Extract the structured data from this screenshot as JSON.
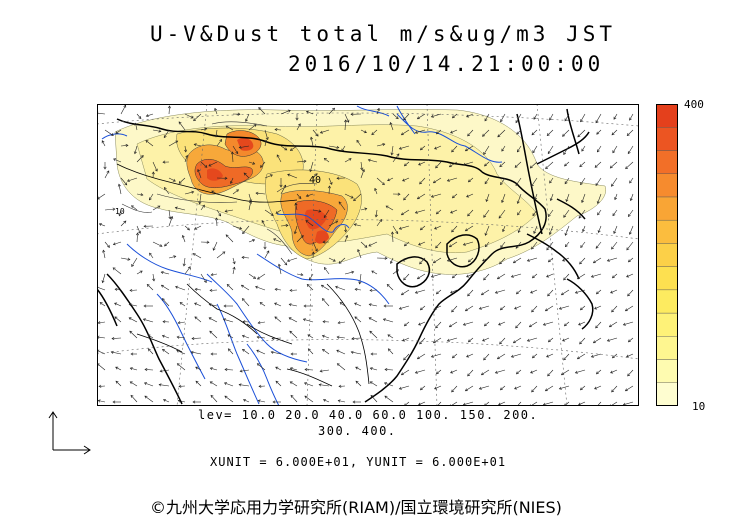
{
  "title": {
    "line1": "U-V&Dust total m/s&ug/m3 JST",
    "line2": "2016/10/14.21:00:00"
  },
  "colorbar": {
    "max_label": "400",
    "min_label": "10",
    "colors": [
      "#fefdd0",
      "#fefbb0",
      "#fef690",
      "#fef278",
      "#fdeb60",
      "#fde050",
      "#fcd048",
      "#fbbd3e",
      "#f9a535",
      "#f68b2e",
      "#f26f28",
      "#ec5522",
      "#e4401c"
    ]
  },
  "levels": {
    "line1": "lev= 10.0 20.0 40.0 60.0 100. 150. 200.",
    "line2": "300. 400."
  },
  "units": "XUNIT = 6.000E+01, YUNIT = 6.000E+01",
  "map_labels": {
    "contour_label": "40",
    "contour_label2": "10"
  },
  "credit": "©九州大学応用力学研究所(RIAM)/国立環境研究所(NIES)",
  "colors": {
    "land_line": "#000000",
    "river": "#1a4fd8",
    "grid": "#555555",
    "dust_light": "#fdf8c0",
    "dust_high": "#e8481e"
  }
}
